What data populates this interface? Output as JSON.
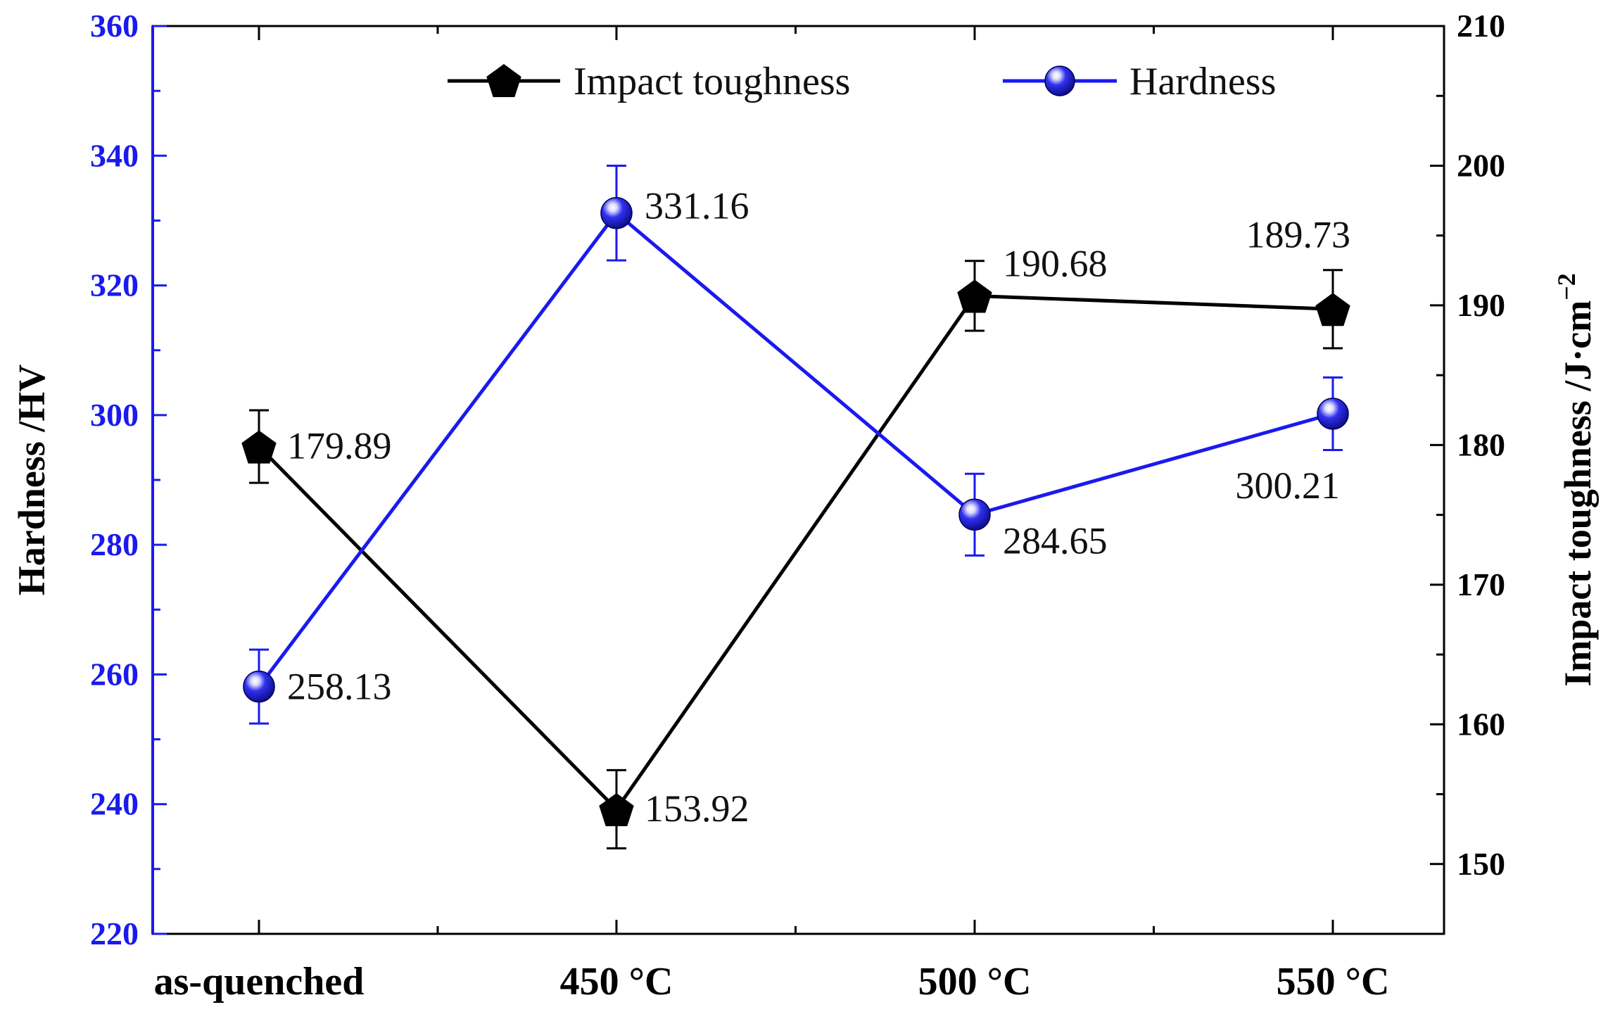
{
  "chart_data": {
    "type": "line",
    "categories": [
      "as-quenched",
      "450 °C",
      "500 °C",
      "550 °C"
    ],
    "left_axis": {
      "label": "Hardness /HV",
      "ylim": [
        220,
        360
      ],
      "ticks": [
        "220",
        "240",
        "260",
        "280",
        "300",
        "320",
        "340",
        "360"
      ]
    },
    "right_axis": {
      "label_main": "Impact toughness /J·cm",
      "label_sup": "−2",
      "ylim": [
        145,
        210
      ],
      "ticks": [
        "150",
        "160",
        "170",
        "180",
        "190",
        "200",
        "210"
      ]
    },
    "series": [
      {
        "name": "Impact toughness",
        "axis": "right",
        "color": "#000000",
        "marker": "pentagon",
        "values": [
          179.89,
          153.92,
          190.68,
          189.73
        ],
        "errors": [
          2.6,
          2.8,
          2.5,
          2.8
        ],
        "labels": [
          "179.89",
          "153.92",
          "190.68",
          "189.73"
        ]
      },
      {
        "name": "Hardness",
        "axis": "left",
        "color": "#1a1aee",
        "marker": "sphere",
        "values": [
          258.13,
          331.16,
          284.65,
          300.21
        ],
        "errors": [
          5.7,
          7.3,
          6.3,
          5.6
        ],
        "labels": [
          "258.13",
          "331.16",
          "284.65",
          "300.21"
        ]
      }
    ],
    "legend": {
      "position": "top-center",
      "entries": [
        "Impact toughness",
        "Hardness"
      ]
    }
  }
}
